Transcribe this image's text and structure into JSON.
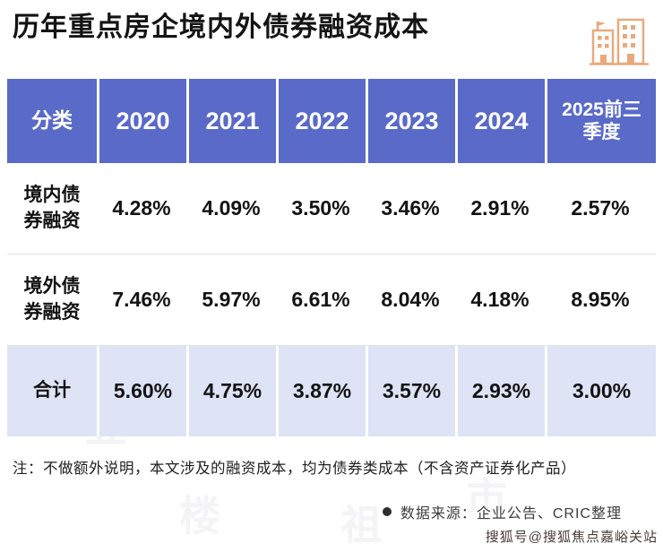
{
  "title": "历年重点房企境内外债券融资成本",
  "icon": {
    "name": "buildings-icon",
    "color": "#E8A97E"
  },
  "table": {
    "header": [
      "分类",
      "2020",
      "2021",
      "2022",
      "2023",
      "2024",
      "2025前三季度"
    ],
    "rows": [
      {
        "label": "境内债券融资",
        "values": [
          "4.28%",
          "4.09%",
          "3.50%",
          "3.46%",
          "2.91%",
          "2.57%"
        ]
      },
      {
        "label": "境外债券融资",
        "values": [
          "7.46%",
          "5.97%",
          "6.61%",
          "8.04%",
          "4.18%",
          "8.95%"
        ]
      },
      {
        "label": "合计",
        "values": [
          "5.60%",
          "4.75%",
          "3.87%",
          "3.57%",
          "2.93%",
          "3.00%"
        ]
      }
    ]
  },
  "note": "注：不做额外说明，本文涉及的融资成本，均为债券类成本（不含资产证券化产品）",
  "source": "数据来源：企业公告、CRIC整理",
  "footer_watermark": "搜狐号@搜狐焦点嘉峪关站",
  "background_watermark": {
    "chars": [
      "丁",
      "祖",
      "昱",
      "评",
      "楼",
      "市"
    ]
  },
  "colors": {
    "header_bg": "#5A6AC8",
    "highlight_row_bg": "#DEE3F5",
    "icon_accent": "#E8A97E",
    "title_text": "#141414"
  },
  "chart_data": {
    "type": "table",
    "title": "历年重点房企境内外债券融资成本",
    "categories": [
      "2020",
      "2021",
      "2022",
      "2023",
      "2024",
      "2025前三季度"
    ],
    "series": [
      {
        "name": "境内债券融资",
        "values": [
          4.28,
          4.09,
          3.5,
          3.46,
          2.91,
          2.57
        ]
      },
      {
        "name": "境外债券融资",
        "values": [
          7.46,
          5.97,
          6.61,
          8.04,
          4.18,
          8.95
        ]
      },
      {
        "name": "合计",
        "values": [
          5.6,
          4.75,
          3.87,
          3.57,
          2.93,
          3.0
        ]
      }
    ],
    "unit": "%",
    "note": "注：不做额外说明，本文涉及的融资成本，均为债券类成本（不含资产证券化产品）",
    "source": "数据来源：企业公告、CRIC整理"
  }
}
